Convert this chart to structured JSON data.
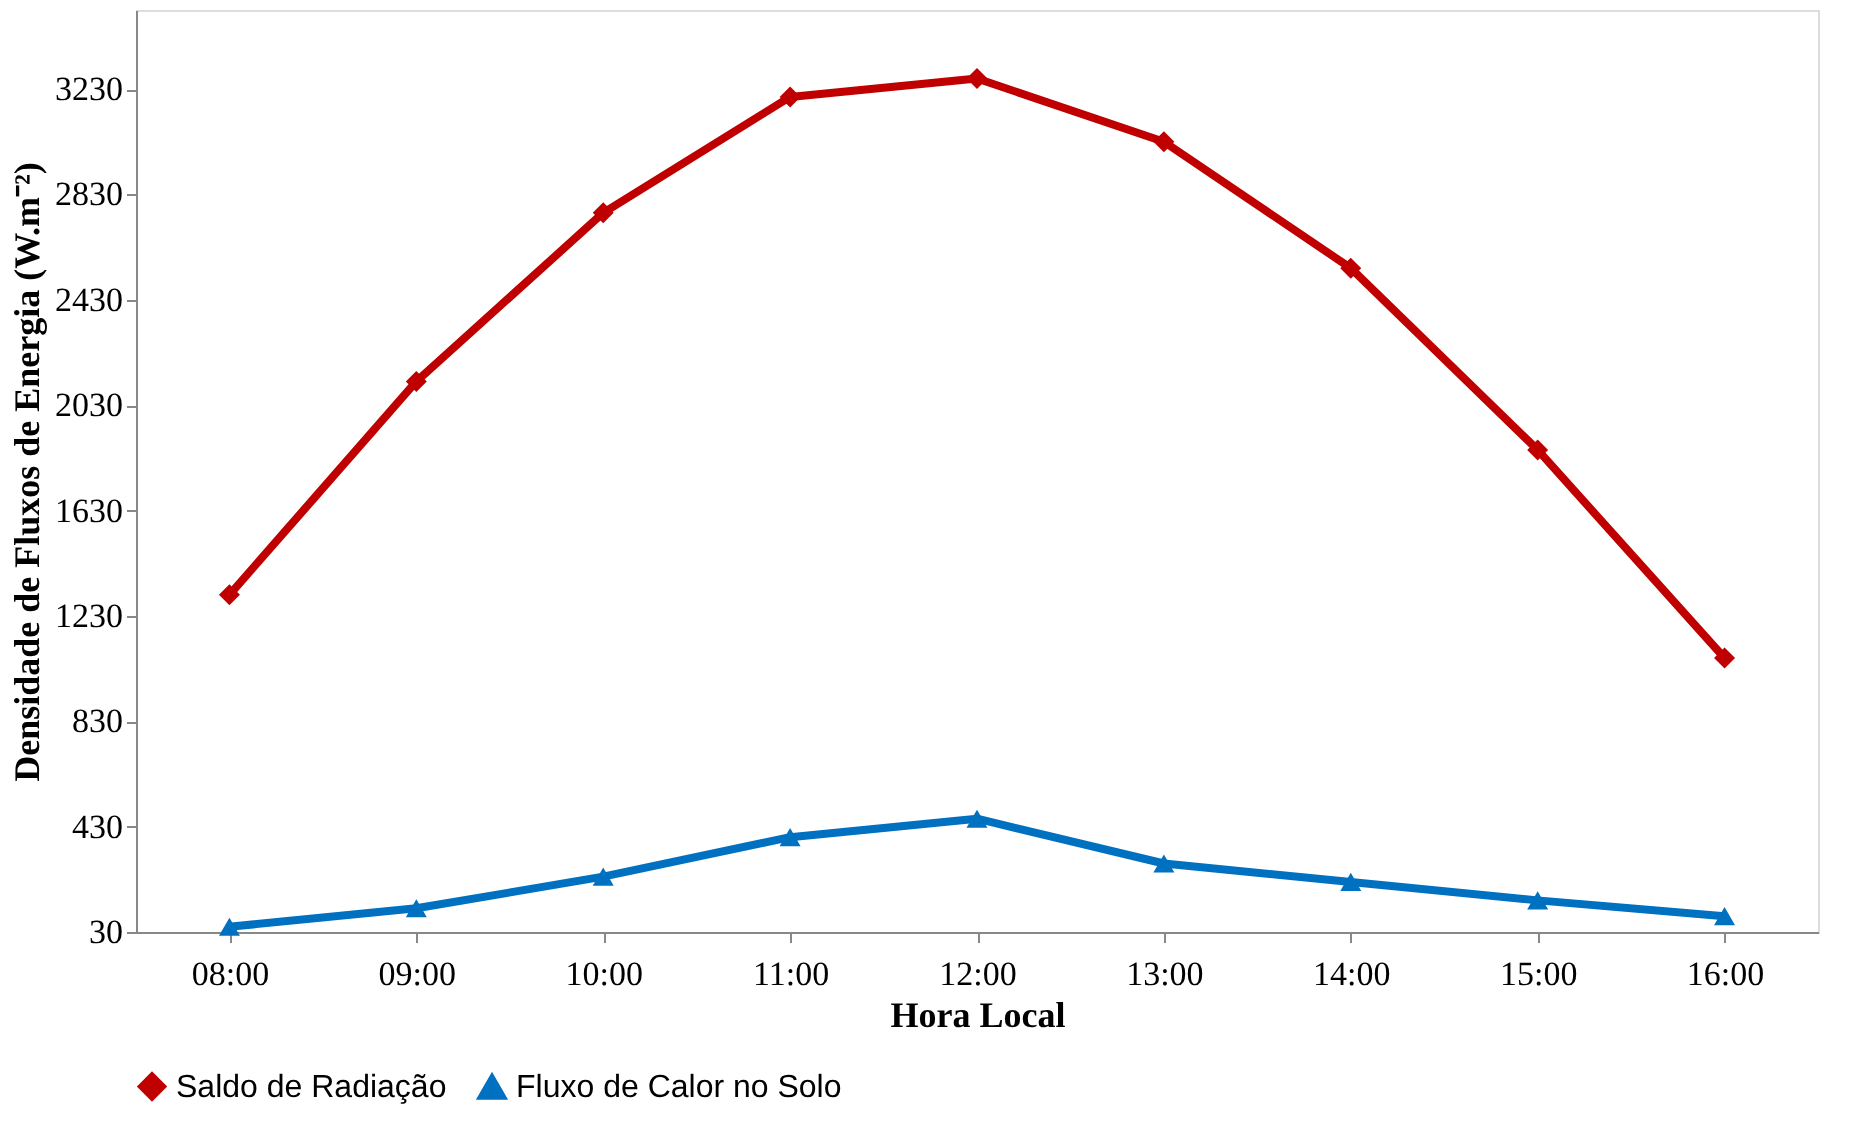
{
  "chart_data": {
    "type": "line",
    "xlabel": "Hora Local",
    "ylabel": "Densidade de Fluxos de Energia (W.m⁻²)",
    "categories": [
      "08:00",
      "09:00",
      "10:00",
      "11:00",
      "12:00",
      "13:00",
      "14:00",
      "15:00",
      "16:00"
    ],
    "series": [
      {
        "name": "Saldo de Radiação",
        "color": "#c00000",
        "marker": "diamond",
        "values": [
          1310,
          2120,
          2760,
          3200,
          3270,
          3030,
          2550,
          1860,
          1070
        ]
      },
      {
        "name": "Fluxo de Calor no Solo",
        "color": "#0070c0",
        "marker": "triangle",
        "values": [
          50,
          120,
          240,
          390,
          460,
          290,
          220,
          150,
          90
        ]
      }
    ],
    "ylim": [
      30,
      3530
    ],
    "yticks": [
      30,
      430,
      830,
      1230,
      1630,
      2030,
      2430,
      2830,
      3230
    ],
    "grid": false,
    "legend": "bottom",
    "line_style": "solid"
  }
}
